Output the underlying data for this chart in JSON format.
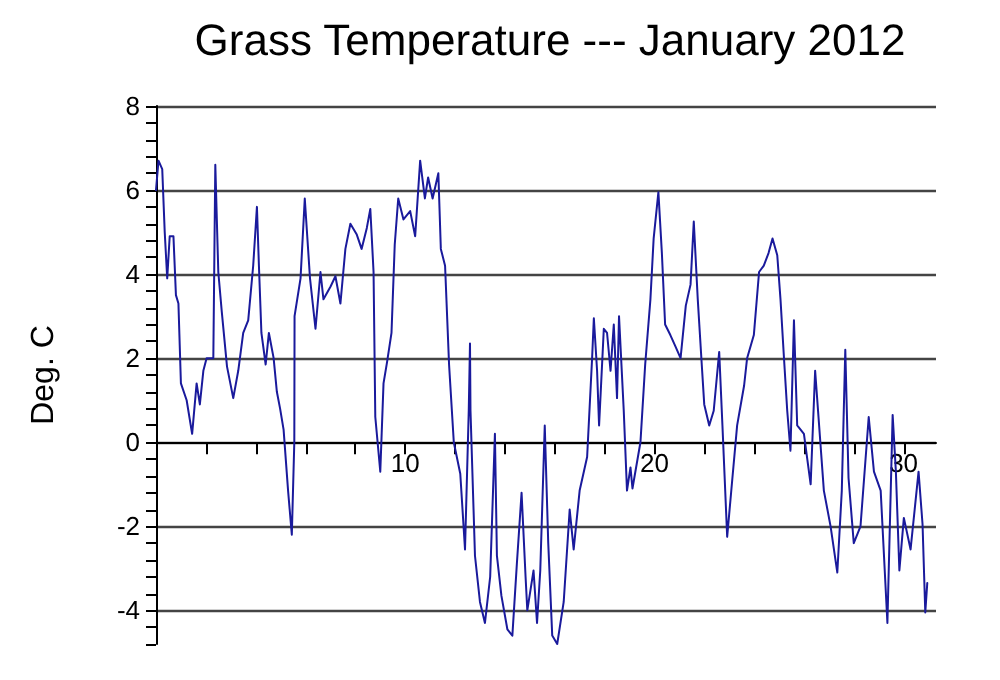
{
  "chart_data": {
    "type": "line",
    "title": "Grass Temperature --- January 2012",
    "ylabel": "Deg. C",
    "x": [
      0,
      0.1,
      0.25,
      0.35,
      0.45,
      0.55,
      0.7,
      0.8,
      0.9,
      1.0,
      1.23,
      1.45,
      1.63,
      1.76,
      1.9,
      2.03,
      2.16,
      2.3,
      2.38,
      2.5,
      2.64,
      2.85,
      3.1,
      3.3,
      3.5,
      3.7,
      3.9,
      4.05,
      4.13,
      4.23,
      4.4,
      4.53,
      4.72,
      4.85,
      4.98,
      5.12,
      5.3,
      5.45,
      5.55,
      5.56,
      5.8,
      5.97,
      6.18,
      6.4,
      6.6,
      6.72,
      7.0,
      7.2,
      7.4,
      7.6,
      7.8,
      8.05,
      8.25,
      8.46,
      8.6,
      8.73,
      8.8,
      9.0,
      9.13,
      9.27,
      9.45,
      9.58,
      9.72,
      9.93,
      10.2,
      10.4,
      10.6,
      10.79,
      10.92,
      11.1,
      11.33,
      11.43,
      11.6,
      11.76,
      11.95,
      12.21,
      12.4,
      12.55,
      12.6,
      12.62,
      12.8,
      13.0,
      13.2,
      13.41,
      13.6,
      13.68,
      13.86,
      14.1,
      14.3,
      14.48,
      14.67,
      14.83,
      14.9,
      15.15,
      15.29,
      15.42,
      15.6,
      15.74,
      15.9,
      16.1,
      16.36,
      16.6,
      16.76,
      17.0,
      17.3,
      17.5,
      17.57,
      17.7,
      17.78,
      17.97,
      18.1,
      18.24,
      18.37,
      18.5,
      18.58,
      18.77,
      18.9,
      19.04,
      19.12,
      19.44,
      19.63,
      19.84,
      19.97,
      20.16,
      20.3,
      20.43,
      20.64,
      20.83,
      21.05,
      21.26,
      21.45,
      21.58,
      21.74,
      21.9,
      22.0,
      22.2,
      22.38,
      22.6,
      22.73,
      22.92,
      23.13,
      23.32,
      23.6,
      23.72,
      23.99,
      24.2,
      24.39,
      24.58,
      24.74,
      24.93,
      25.06,
      25.2,
      25.33,
      25.46,
      25.6,
      25.73,
      26.0,
      26.27,
      26.45,
      26.8,
      27.07,
      27.34,
      27.52,
      27.66,
      27.79,
      28.0,
      28.27,
      28.6,
      28.81,
      29.08,
      29.35,
      29.56,
      29.69,
      29.83,
      30.01,
      30.28,
      30.6,
      30.76,
      30.87,
      30.95
    ],
    "series": [
      {
        "color": "#1a1a9c",
        "values": [
          6.0,
          6.7,
          6.5,
          5.0,
          3.9,
          4.9,
          4.9,
          3.5,
          3.3,
          1.4,
          1.0,
          0.2,
          1.4,
          0.9,
          1.7,
          2.0,
          2.0,
          2.0,
          6.6,
          4.05,
          3.1,
          1.8,
          1.05,
          1.7,
          2.6,
          2.9,
          4.2,
          5.6,
          4.2,
          2.6,
          1.85,
          2.6,
          2.0,
          1.2,
          0.8,
          0.3,
          -1.15,
          -2.2,
          0,
          3.0,
          3.9,
          5.8,
          3.9,
          2.7,
          4.05,
          3.4,
          3.7,
          3.95,
          3.3,
          4.6,
          5.2,
          4.95,
          4.6,
          5.1,
          5.55,
          4.05,
          0.6,
          -0.7,
          1.4,
          1.9,
          2.6,
          4.7,
          5.8,
          5.3,
          5.5,
          4.9,
          6.7,
          5.8,
          6.3,
          5.8,
          6.4,
          4.6,
          4.2,
          1.85,
          0,
          -0.75,
          -2.55,
          0.75,
          2.35,
          0.75,
          -2.7,
          -3.8,
          -4.3,
          -3.2,
          0.2,
          -2.7,
          -3.65,
          -4.45,
          -4.6,
          -2.9,
          -1.2,
          -3.2,
          -4.0,
          -3.05,
          -4.3,
          -3.05,
          0.4,
          -2.4,
          -4.6,
          -4.8,
          -3.8,
          -1.6,
          -2.55,
          -1.15,
          -0.35,
          2.0,
          2.95,
          1.7,
          0.4,
          2.7,
          2.6,
          1.7,
          2.8,
          1.05,
          3.0,
          0.75,
          -1.15,
          -0.6,
          -1.1,
          0,
          1.85,
          3.4,
          4.85,
          5.95,
          4.5,
          2.8,
          2.55,
          2.3,
          2.0,
          3.25,
          3.75,
          5.25,
          3.4,
          1.85,
          0.9,
          0.4,
          0.75,
          2.15,
          0.4,
          -2.25,
          -0.85,
          0.4,
          1.35,
          2.0,
          2.55,
          4.05,
          4.2,
          4.5,
          4.85,
          4.45,
          3.4,
          2.0,
          0.75,
          -0.2,
          2.9,
          0.4,
          0.2,
          -1.0,
          1.7,
          -1.15,
          -2.0,
          -3.1,
          -1.15,
          2.2,
          -0.85,
          -2.4,
          -2.0,
          0.6,
          -0.7,
          -1.15,
          -4.3,
          0.65,
          -0.7,
          -3.05,
          -1.8,
          -2.55,
          -0.7,
          -1.95,
          -4.05,
          -3.35
        ]
      }
    ],
    "xlim": [
      0,
      31.3
    ],
    "xticks": [
      {
        "value": 2,
        "label": null
      },
      {
        "value": 4,
        "label": null
      },
      {
        "value": 6,
        "label": null
      },
      {
        "value": 8,
        "label": null
      },
      10,
      {
        "value": 12,
        "label": null
      },
      {
        "value": 14,
        "label": null
      },
      {
        "value": 16,
        "label": null
      },
      {
        "value": 18,
        "label": null
      },
      20,
      {
        "value": 22,
        "label": null
      },
      {
        "value": 24,
        "label": null
      },
      {
        "value": 26,
        "label": null
      },
      {
        "value": 28,
        "label": null
      },
      30
    ],
    "ylim": [
      -4.8,
      8
    ],
    "yticks": [
      {
        "value": -4.8,
        "label": null
      },
      {
        "value": -4.4,
        "label": null
      },
      -4,
      {
        "value": -3.6,
        "label": null
      },
      {
        "value": -3.2,
        "label": null
      },
      {
        "value": -2.8,
        "label": null
      },
      {
        "value": -2.4,
        "label": null
      },
      -2,
      {
        "value": -1.6,
        "label": null
      },
      {
        "value": -1.2,
        "label": null
      },
      {
        "value": -0.8,
        "label": null
      },
      {
        "value": -0.4,
        "label": null
      },
      0,
      {
        "value": 0.4,
        "label": null
      },
      {
        "value": 0.8,
        "label": null
      },
      {
        "value": 1.2,
        "label": null
      },
      {
        "value": 1.6,
        "label": null
      },
      2,
      {
        "value": 2.4,
        "label": null
      },
      {
        "value": 2.8,
        "label": null
      },
      {
        "value": 3.2,
        "label": null
      },
      {
        "value": 3.6,
        "label": null
      },
      4,
      {
        "value": 4.4,
        "label": null
      },
      {
        "value": 4.8,
        "label": null
      },
      {
        "value": 5.2,
        "label": null
      },
      {
        "value": 5.6,
        "label": null
      },
      6,
      {
        "value": 6.4,
        "label": null
      },
      {
        "value": 6.8,
        "label": null
      },
      {
        "value": 7.2,
        "label": null
      },
      {
        "value": 7.6,
        "label": null
      },
      8
    ],
    "grid": "y",
    "marker": "none",
    "line_style": "solid"
  }
}
